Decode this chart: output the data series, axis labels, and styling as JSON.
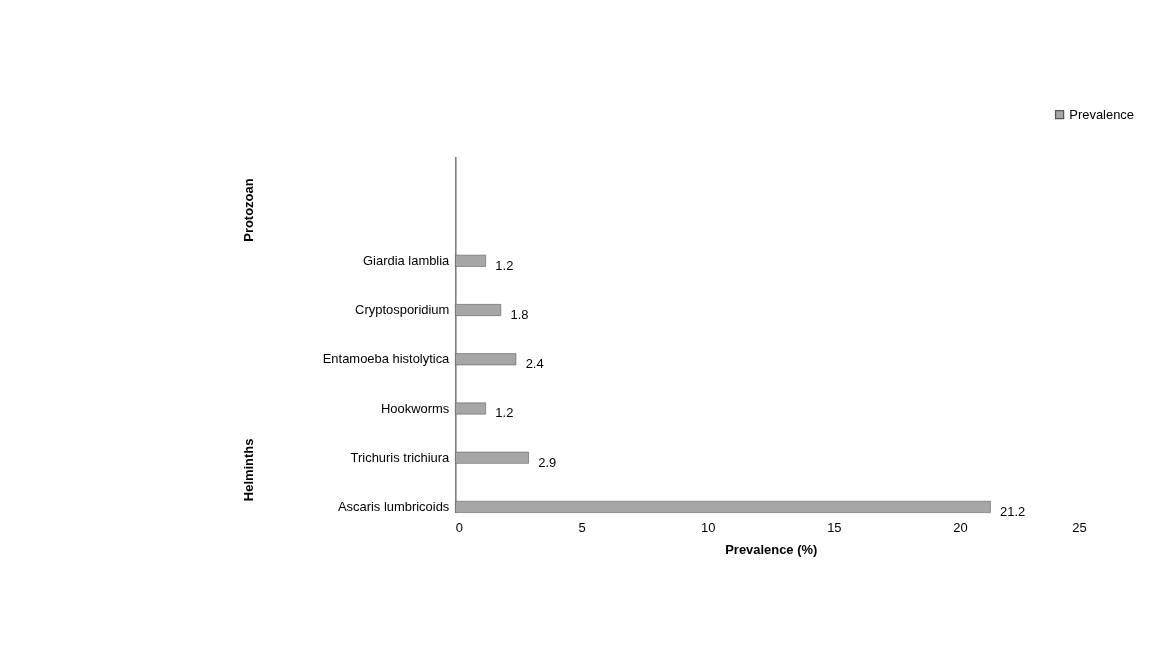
{
  "chart_data": {
    "type": "bar",
    "orientation": "horizontal",
    "xlabel": "Prevalence (%)",
    "categories": [
      "Giardia lamblia",
      "Cryptosporidium",
      "Entamoeba histolytica",
      "Hookworms",
      "Trichuris trichiura",
      "Ascaris lumbricoids"
    ],
    "series": [
      {
        "name": "Prevalence",
        "color": "#a6a6a6",
        "values": [
          1.2,
          1.8,
          2.4,
          1.2,
          2.9,
          21.2
        ]
      }
    ],
    "xlim": [
      0,
      25
    ],
    "xticks": [
      0,
      5,
      10,
      15,
      20,
      25
    ],
    "annotations": [
      "Protozoan",
      "Helminths"
    ],
    "data_labels": true,
    "legend": "top right",
    "grid": false
  }
}
